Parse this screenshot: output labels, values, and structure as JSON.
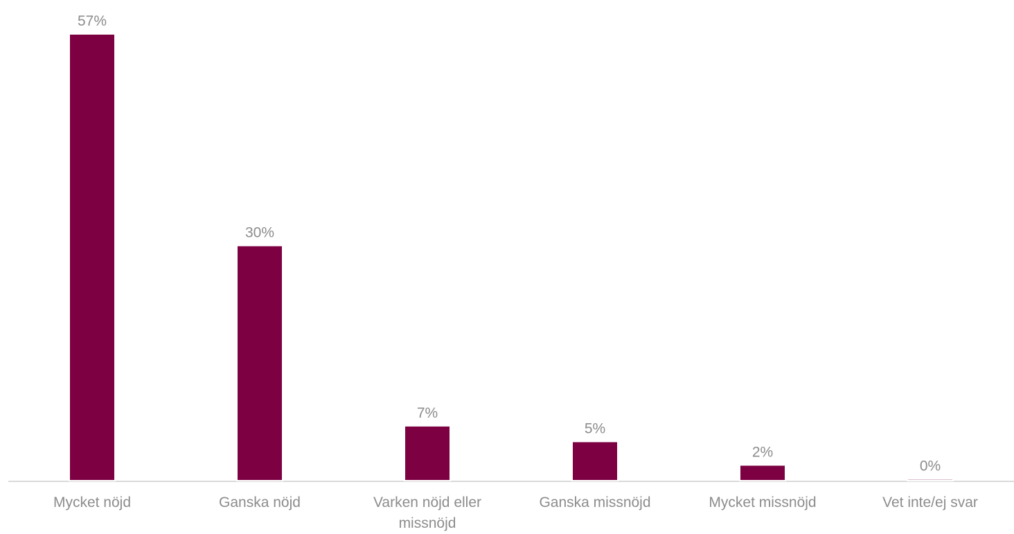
{
  "chart_data": {
    "type": "bar",
    "categories": [
      "Mycket nöjd",
      "Ganska nöjd",
      "Varken nöjd eller missnöjd",
      "Ganska missnöjd",
      "Mycket missnöjd",
      "Vet inte/ej svar"
    ],
    "category_lines": [
      [
        "Mycket nöjd"
      ],
      [
        "Ganska nöjd"
      ],
      [
        "Varken nöjd eller",
        "missnöjd"
      ],
      [
        "Ganska missnöjd"
      ],
      [
        "Mycket missnöjd"
      ],
      [
        "Vet inte/ej svar"
      ]
    ],
    "values": [
      57,
      30,
      7,
      5,
      2,
      0.2
    ],
    "data_labels": [
      "57%",
      "30%",
      "7%",
      "5%",
      "2%",
      "0%"
    ],
    "ylim": [
      0,
      57
    ],
    "grid": false,
    "legend": "none",
    "colors": {
      "bar": "#7d0042",
      "text": "#8c8c8c",
      "axis": "#d9d9d9"
    }
  }
}
